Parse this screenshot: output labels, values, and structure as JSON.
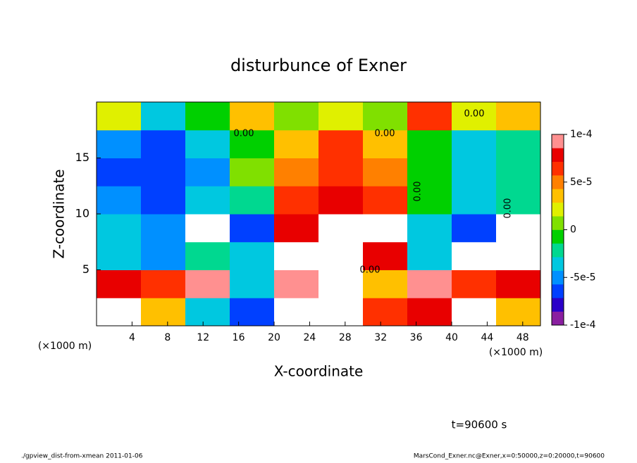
{
  "chart_data": {
    "type": "heatmap",
    "title": "disturbunce of Exner",
    "xlabel": "X-coordinate",
    "ylabel": "Z-coordinate",
    "xunit": "(×1000 m)",
    "time_label": "t=90600 s",
    "footer_left": "./gpview_dist-from-xmean  2011-01-06",
    "footer_right": "MarsCond_Exner.nc@Exner,x=0:50000,z=0:20000,t=90600",
    "annotations": [
      "0.00",
      "0.00",
      "0.00",
      "0.00",
      "0.00",
      "0.00"
    ],
    "x": [
      2.5,
      7.5,
      12.5,
      17.5,
      22.5,
      27.5,
      32.5,
      37.5,
      42.5,
      47.5
    ],
    "y": [
      1.25,
      3.75,
      6.25,
      8.75,
      11.25,
      13.75,
      16.25,
      18.75
    ],
    "z": [
      [
        -0.00011,
        4e-05,
        -3e-05,
        -6e-05,
        0.00011,
        -0.00012,
        6e-05,
        8e-05,
        -0.00011,
        3e-05
      ],
      [
        8e-05,
        7e-05,
        9e-05,
        -3e-05,
        0.0001,
        -0.00012,
        4e-05,
        9e-05,
        6e-05,
        8e-05
      ],
      [
        -3e-05,
        -5e-05,
        -2e-05,
        -4e-05,
        0.00011,
        0.00011,
        8e-05,
        -3e-05,
        0.00011,
        0.00011
      ],
      [
        -4e-05,
        -5e-05,
        0.00011,
        -6e-05,
        8e-05,
        0.00011,
        0.00011,
        -3e-05,
        -6e-05,
        0.00011
      ],
      [
        -5e-05,
        -6e-05,
        -4e-05,
        -2e-05,
        6e-05,
        8e-05,
        7e-05,
        -1e-05,
        -4e-05,
        -2e-05
      ],
      [
        -6e-05,
        -7e-05,
        -5e-05,
        0,
        5e-05,
        7e-05,
        5e-05,
        -1e-05,
        -3e-05,
        -2e-05
      ],
      [
        -5e-05,
        -6e-05,
        -4e-05,
        -1e-05,
        3e-05,
        6e-05,
        4e-05,
        -1e-05,
        -3e-05,
        -2e-05
      ],
      [
        2e-05,
        -3e-05,
        -1e-05,
        4e-05,
        1e-05,
        2e-05,
        0,
        7e-05,
        2e-05,
        3e-05
      ]
    ],
    "xlim": [
      0,
      50
    ],
    "ylim": [
      0,
      20
    ],
    "xticks": [
      4,
      8,
      12,
      16,
      20,
      24,
      28,
      32,
      36,
      40,
      44,
      48
    ],
    "yticks": [
      5,
      10,
      15
    ],
    "zlim": [
      -0.0001,
      0.0001
    ],
    "zticks": [
      {
        "value": 0.0001,
        "label": "1e-4"
      },
      {
        "value": 5e-05,
        "label": "5e-5"
      },
      0,
      {
        "value": -5e-05,
        "label": "-5e-5"
      },
      {
        "value": -0.0001,
        "label": "-1e-4"
      }
    ],
    "colors": [
      "#8a1fa0",
      "#2b00c8",
      "#0040ff",
      "#0090ff",
      "#00c8e0",
      "#00d890",
      "#00d000",
      "#80e000",
      "#e0f000",
      "#ffc000",
      "#ff8000",
      "#ff3000",
      "#e80000",
      "#ff9090"
    ]
  }
}
